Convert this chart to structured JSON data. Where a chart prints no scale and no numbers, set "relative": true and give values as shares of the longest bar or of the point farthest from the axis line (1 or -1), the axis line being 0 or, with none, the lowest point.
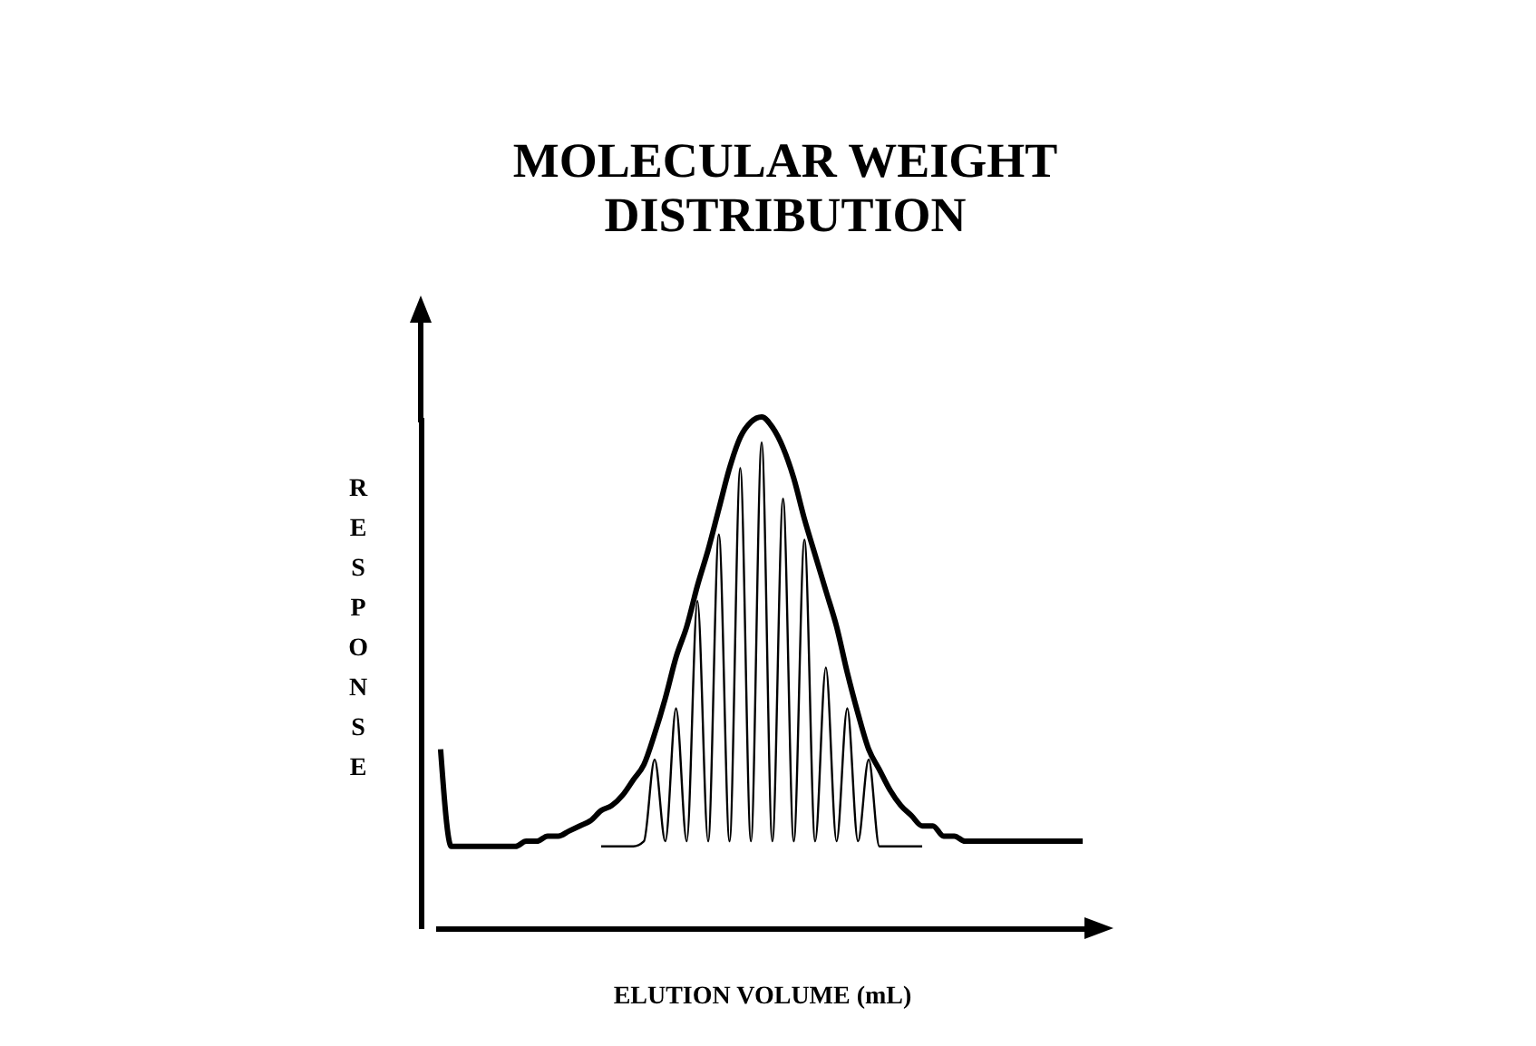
{
  "chart_data": {
    "type": "line",
    "title": "MOLECULAR WEIGHT DISTRIBUTION",
    "xlabel": "ELUTION VOLUME (mL)",
    "ylabel": "RESPONSE",
    "relative": true,
    "categories": [
      null,
      null,
      null,
      null,
      null,
      null,
      null,
      null,
      null,
      null,
      null,
      null,
      null,
      null,
      null,
      null,
      null,
      null,
      null,
      null,
      null,
      null,
      null,
      null,
      null,
      null,
      null,
      null,
      null,
      null,
      null,
      null,
      null,
      null,
      null,
      null,
      null,
      null,
      null,
      null,
      null,
      null,
      null,
      null,
      null,
      null,
      null,
      null,
      null,
      null,
      null,
      null,
      null,
      null,
      null,
      null,
      null,
      null,
      null,
      null,
      null
    ],
    "series": [
      {
        "color": "#000000",
        "values": [
          0.35,
          0.16,
          0.16,
          0.16,
          0.16,
          0.16,
          0.16,
          0.16,
          0.17,
          0.17,
          0.18,
          0.18,
          0.19,
          0.2,
          0.21,
          0.23,
          0.24,
          0.26,
          0.29,
          0.32,
          0.38,
          0.45,
          0.53,
          0.59,
          0.67,
          0.74,
          0.82,
          0.9,
          0.96,
          0.99,
          1,
          0.98,
          0.94,
          0.88,
          0.8,
          0.73,
          0.66,
          0.59,
          0.5,
          0.42,
          0.35,
          0.31,
          0.27,
          0.24,
          0.22,
          0.2,
          0.2,
          0.18,
          0.18,
          0.17,
          0.17,
          0.17,
          0.17,
          0.17,
          0.17,
          0.17,
          0.17,
          0.17,
          0.17,
          0.17,
          0.17
        ]
      },
      {
        "color": "#000000",
        "values": [
          null,
          null,
          null,
          null,
          null,
          null,
          null,
          null,
          null,
          null,
          null,
          null,
          null,
          null,
          null,
          0.16,
          0.16,
          0.16,
          0.16,
          0.17,
          0.33,
          0.17,
          0.43,
          0.17,
          0.64,
          0.17,
          0.77,
          0.17,
          0.9,
          0.17,
          0.95,
          0.17,
          0.84,
          0.17,
          0.76,
          0.17,
          0.51,
          0.17,
          0.43,
          0.17,
          0.33,
          0.16,
          0.16,
          0.16,
          0.16,
          0.16,
          null,
          null,
          null,
          null,
          null,
          null,
          null,
          null,
          null,
          null,
          null,
          null,
          null,
          null,
          null
        ]
      }
    ]
  }
}
